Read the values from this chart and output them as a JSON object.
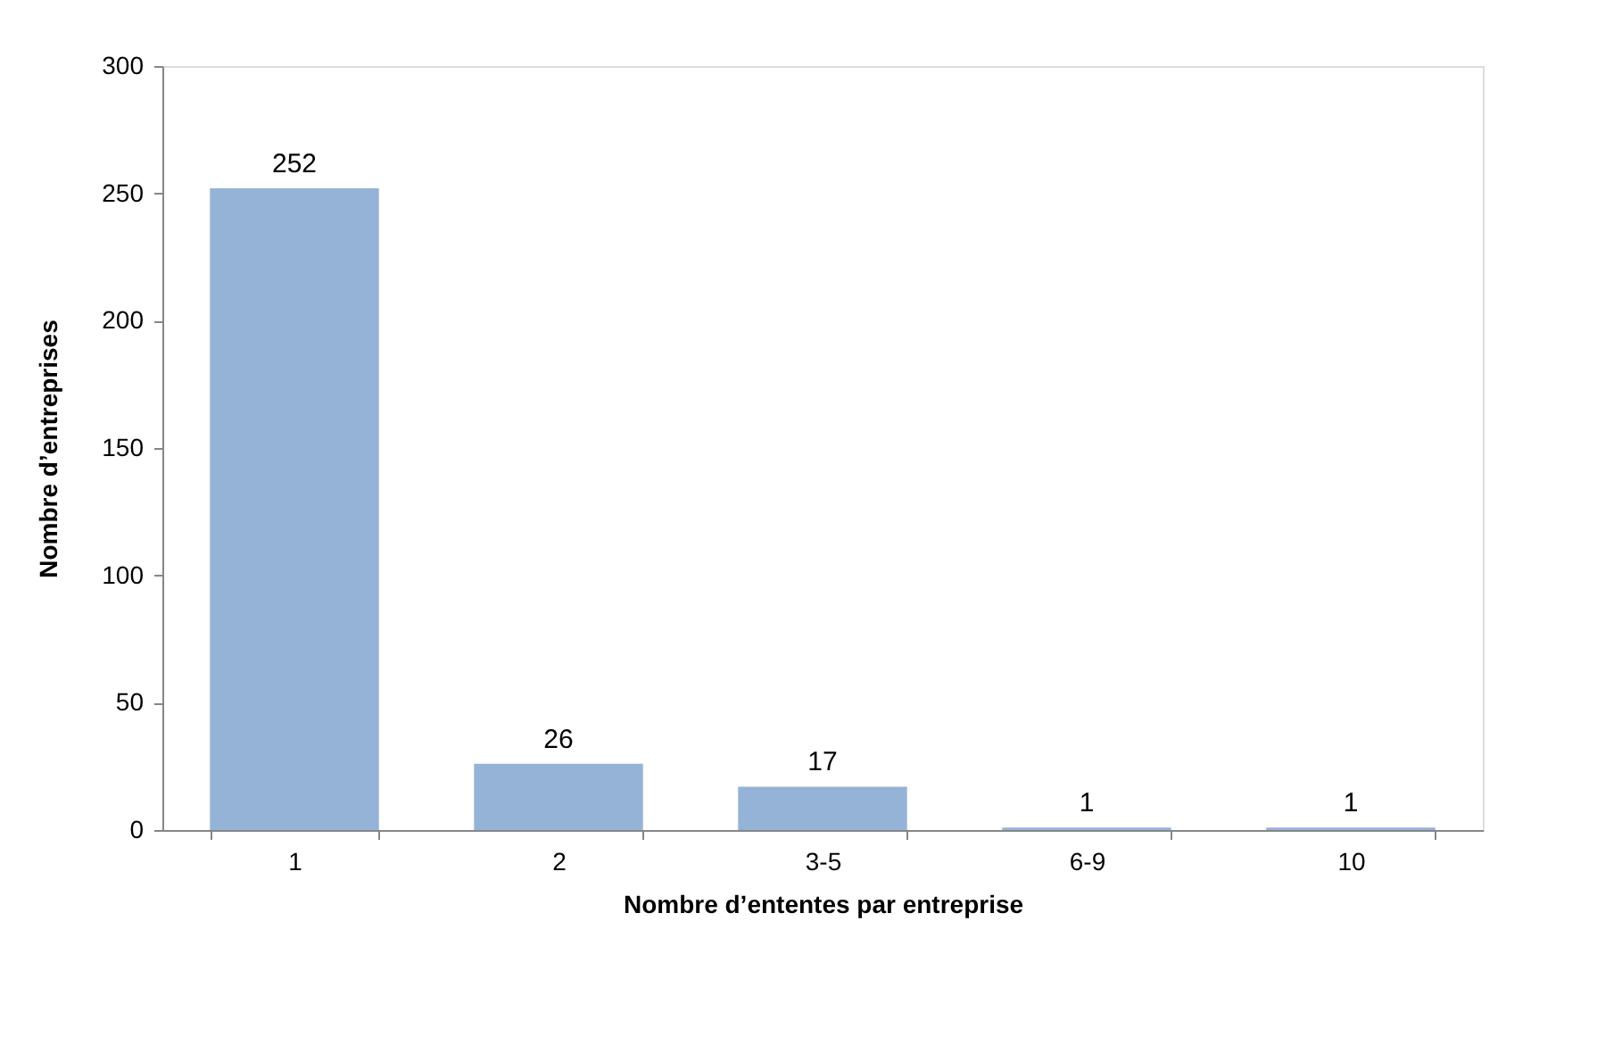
{
  "chart_data": {
    "type": "bar",
    "xlabel": "Nombre d’ententes par entreprise",
    "ylabel": "Nombre d’entreprises",
    "categories": [
      "1",
      "2",
      "3-5",
      "6-9",
      "10"
    ],
    "values": [
      252,
      26,
      17,
      1,
      1
    ],
    "color": "#95b3d7",
    "ylim": [
      0,
      300
    ],
    "yticks": [
      0,
      50,
      100,
      150,
      200,
      250,
      300
    ],
    "grid": false,
    "data_labels": true
  }
}
